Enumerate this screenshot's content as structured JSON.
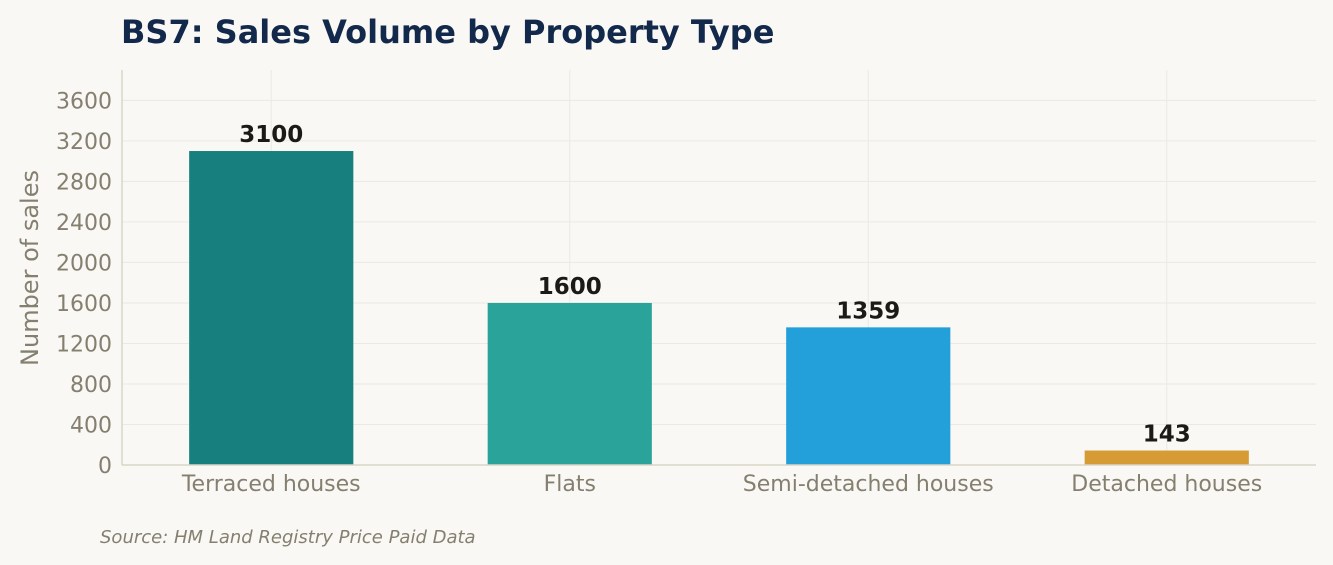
{
  "chart_data": {
    "type": "bar",
    "title": "BS7: Sales Volume by Property Type",
    "xlabel": "",
    "ylabel": "Number of sales",
    "categories": [
      "Terraced houses",
      "Flats",
      "Semi-detached houses",
      "Detached houses"
    ],
    "values": [
      3100,
      1600,
      1359,
      143
    ],
    "data_labels": [
      "3100",
      "1600",
      "1359",
      "143"
    ],
    "colors": [
      "#177f7e",
      "#2aa39b",
      "#239fda",
      "#d79b35"
    ],
    "ylim": [
      0,
      3900
    ],
    "yticks": [
      0,
      400,
      800,
      1200,
      1600,
      2000,
      2400,
      2800,
      3200,
      3600
    ],
    "grid": true,
    "legend": "none",
    "source": "Source: HM Land Registry Price Paid Data"
  }
}
